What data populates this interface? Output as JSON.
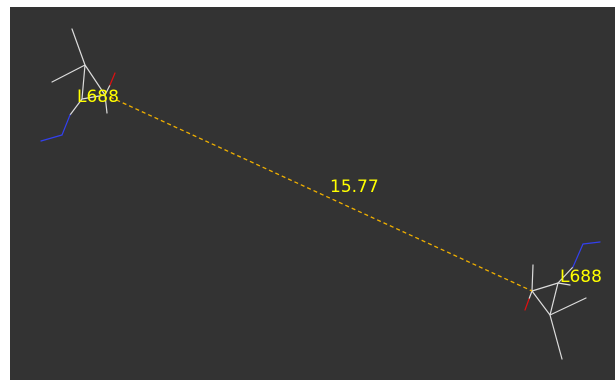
{
  "viewer": {
    "background_color": "#333333",
    "distance_color": "#f0b000",
    "carbon_color": "#dcdcdc",
    "oxygen_color": "#e01010",
    "nitrogen_color": "#3340ee",
    "residue_label_color": "#ffff00",
    "residue_1_label": "L688",
    "residue_2_label": "L688",
    "distance_label": "15.77"
  }
}
